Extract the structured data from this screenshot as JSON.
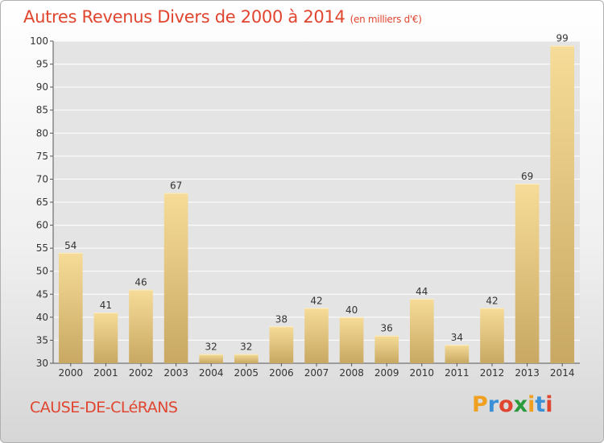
{
  "header": {
    "title": "Autres Revenus Divers de 2000 à 2014",
    "unit": "(en milliers d'€)"
  },
  "footer": {
    "commune": "CAUSE-DE-CLéRANS",
    "logo_letters": [
      "P",
      "r",
      "o",
      "x",
      "i",
      "t",
      "i"
    ],
    "logo_colors": [
      "#f0a020",
      "#3a8fd6",
      "#e0452f",
      "#2a9a3a",
      "#f0a020",
      "#3a8fd6",
      "#e0452f"
    ]
  },
  "chart_data": {
    "type": "bar",
    "categories": [
      "2000",
      "2001",
      "2002",
      "2003",
      "2004",
      "2005",
      "2006",
      "2007",
      "2008",
      "2009",
      "2010",
      "2011",
      "2012",
      "2013",
      "2014"
    ],
    "values": [
      54,
      41,
      46,
      67,
      32,
      32,
      38,
      42,
      40,
      36,
      44,
      34,
      42,
      69,
      99
    ],
    "ylim": [
      30,
      100
    ],
    "yticks": [
      30,
      35,
      40,
      45,
      50,
      55,
      60,
      65,
      70,
      75,
      80,
      85,
      90,
      95,
      100
    ],
    "grid": true,
    "bar_color_light": "#f6dc98",
    "bar_color_dark": "#c8a862"
  }
}
